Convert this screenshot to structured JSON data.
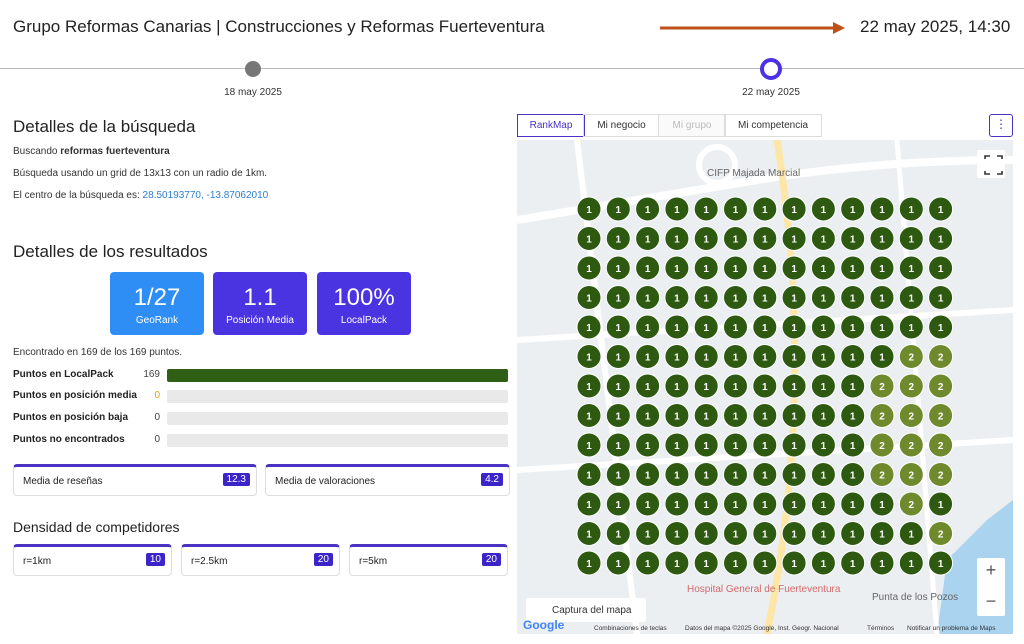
{
  "header": {
    "title": "Grupo Reformas Canarias | Construcciones y Reformas Fuerteventura",
    "datetime": "22 may 2025, 14:30"
  },
  "timeline": [
    {
      "label": "18 may 2025",
      "active": false
    },
    {
      "label": "22 may 2025",
      "active": true
    }
  ],
  "search": {
    "title": "Detalles de la búsqueda",
    "line1_prefix": "Buscando",
    "keyword": "reformas fuerteventura",
    "line2": "Búsqueda usando un grid de 13x13 con un radio de 1km.",
    "line3_prefix": "El centro de la búsqueda es:",
    "coords": "28.50193770, -13.87062010"
  },
  "results": {
    "title": "Detalles de los resultados",
    "cards": [
      {
        "value": "1/27",
        "label": "GeoRank",
        "color": "#2f8ef5"
      },
      {
        "value": "1.1",
        "label": "Posición Media",
        "color": "#4a33e0"
      },
      {
        "value": "100%",
        "label": "LocalPack",
        "color": "#4a33e0"
      }
    ],
    "found_text": "Encontrado en 169 de los 169 puntos.",
    "rows": [
      {
        "label": "Puntos en LocalPack",
        "count": 169,
        "color": "#2e5f14"
      },
      {
        "label": "Puntos en posición media",
        "count": 0,
        "color": "#e0a020"
      },
      {
        "label": "Puntos en posición baja",
        "count": 0,
        "color": "#d9534f"
      },
      {
        "label": "Puntos no encontrados",
        "count": 0,
        "color": "#888888"
      }
    ]
  },
  "stats": [
    {
      "label": "Media de reseñas",
      "value": 12.3
    },
    {
      "label": "Media de valoraciones",
      "value": 4.2
    }
  ],
  "density": {
    "title": "Densidad de competidores",
    "items": [
      {
        "label": "r=1km",
        "value": 10
      },
      {
        "label": "r=2.5km",
        "value": 20
      },
      {
        "label": "r=5km",
        "value": 20
      }
    ]
  },
  "map": {
    "tabs": [
      {
        "label": "RankMap",
        "state": "active"
      },
      {
        "label": "Mi negocio",
        "state": "normal"
      },
      {
        "label": "Mi grupo",
        "state": "disabled"
      },
      {
        "label": "Mi competencia",
        "state": "normal"
      }
    ],
    "colors": {
      "1": "#2d5a10",
      "2": "#6e8a2c"
    },
    "grid": [
      [
        1,
        1,
        1,
        1,
        1,
        1,
        1,
        1,
        1,
        1,
        1,
        1,
        1
      ],
      [
        1,
        1,
        1,
        1,
        1,
        1,
        1,
        1,
        1,
        1,
        1,
        1,
        1
      ],
      [
        1,
        1,
        1,
        1,
        1,
        1,
        1,
        1,
        1,
        1,
        1,
        1,
        1
      ],
      [
        1,
        1,
        1,
        1,
        1,
        1,
        1,
        1,
        1,
        1,
        1,
        1,
        1
      ],
      [
        1,
        1,
        1,
        1,
        1,
        1,
        1,
        1,
        1,
        1,
        1,
        1,
        1
      ],
      [
        1,
        1,
        1,
        1,
        1,
        1,
        1,
        1,
        1,
        1,
        1,
        2,
        2
      ],
      [
        1,
        1,
        1,
        1,
        1,
        1,
        1,
        1,
        1,
        1,
        2,
        2,
        2
      ],
      [
        1,
        1,
        1,
        1,
        1,
        1,
        1,
        1,
        1,
        1,
        2,
        2,
        2
      ],
      [
        1,
        1,
        1,
        1,
        1,
        1,
        1,
        1,
        1,
        1,
        2,
        2,
        2
      ],
      [
        1,
        1,
        1,
        1,
        1,
        1,
        1,
        1,
        1,
        1,
        2,
        2,
        2
      ],
      [
        1,
        1,
        1,
        1,
        1,
        1,
        1,
        1,
        1,
        1,
        1,
        2,
        1
      ],
      [
        1,
        1,
        1,
        1,
        1,
        1,
        1,
        1,
        1,
        1,
        1,
        1,
        2
      ],
      [
        1,
        1,
        1,
        1,
        1,
        1,
        1,
        1,
        1,
        1,
        1,
        1,
        1
      ]
    ],
    "labels": [
      "CIFP Majada Marcial",
      "Hospital General de Fuerteventura",
      "Punta de los Pozos"
    ],
    "capture": "Captura del mapa",
    "google": "Google",
    "footer": [
      "Combinaciones de teclas",
      "Datos del mapa ©2025 Google, Inst. Geogr. Nacional",
      "Términos",
      "Notificar un problema de Maps"
    ]
  }
}
